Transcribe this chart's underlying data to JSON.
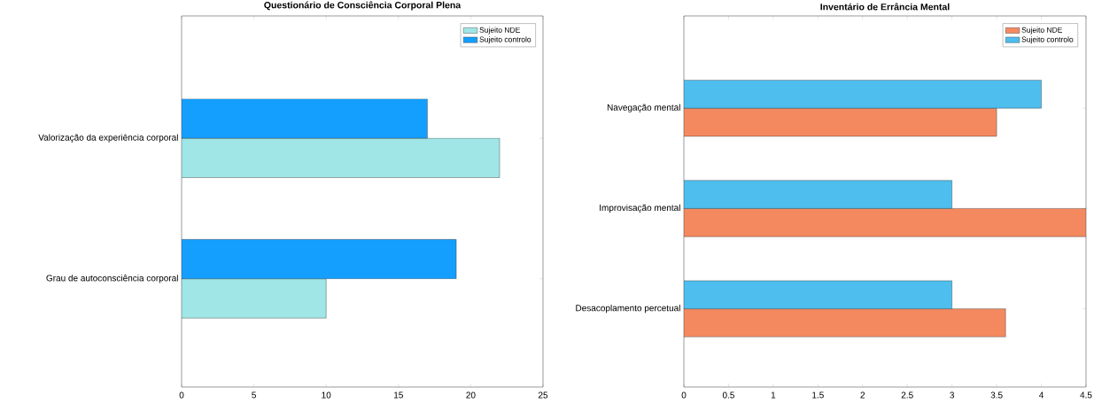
{
  "chart_data": [
    {
      "type": "bar",
      "orientation": "horizontal",
      "title": "Questionário de Consciência Corporal Plena",
      "categories": [
        "Valorização da experiência corporal",
        "Grau de autoconsciência corporal"
      ],
      "series": [
        {
          "name": "Sujeito NDE",
          "color": "#a0e6e6",
          "values": [
            22,
            10
          ]
        },
        {
          "name": "Sujeito controlo",
          "color": "#149ffe",
          "values": [
            17,
            19
          ]
        }
      ],
      "xlim": [
        0,
        25
      ],
      "xticks": [
        0,
        5,
        10,
        15,
        20,
        25
      ],
      "legend": "top right"
    },
    {
      "type": "bar",
      "orientation": "horizontal",
      "title": "Inventário de Errância Mental",
      "categories": [
        "Navegação mental",
        "Improvisação mental",
        "Desacoplamento percetual"
      ],
      "series": [
        {
          "name": "Sujeito NDE",
          "color": "#f4895f",
          "values": [
            3.5,
            4.5,
            3.6
          ]
        },
        {
          "name": "Sujeito controlo",
          "color": "#4dbeee",
          "values": [
            4,
            3,
            3
          ]
        }
      ],
      "xlim": [
        0,
        4.5
      ],
      "xticks": [
        0,
        0.5,
        1,
        1.5,
        2,
        2.5,
        3,
        3.5,
        4,
        4.5
      ],
      "legend": "top right"
    }
  ]
}
